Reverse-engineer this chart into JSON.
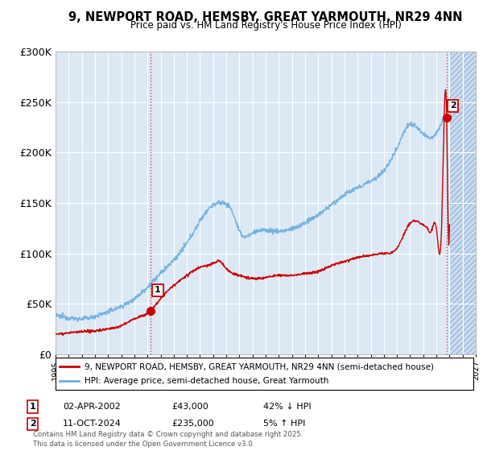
{
  "title": "9, NEWPORT ROAD, HEMSBY, GREAT YARMOUTH, NR29 4NN",
  "subtitle": "Price paid vs. HM Land Registry's House Price Index (HPI)",
  "xmin": 1995.0,
  "xmax": 2027.0,
  "ymin": 0,
  "ymax": 300000,
  "yticks": [
    0,
    50000,
    100000,
    150000,
    200000,
    250000,
    300000
  ],
  "ytick_labels": [
    "£0",
    "£50K",
    "£100K",
    "£150K",
    "£200K",
    "£250K",
    "£300K"
  ],
  "bg_color": "#dce9f5",
  "grid_color": "#ffffff",
  "hatch_start": 2025.0,
  "sale1_x": 2002.25,
  "sale1_y": 43000,
  "sale2_x": 2024.78,
  "sale2_y": 235000,
  "legend_line1": "9, NEWPORT ROAD, HEMSBY, GREAT YARMOUTH, NR29 4NN (semi-detached house)",
  "legend_line2": "HPI: Average price, semi-detached house, Great Yarmouth",
  "ann1_label": "1",
  "ann1_date": "02-APR-2002",
  "ann1_price": "£43,000",
  "ann1_hpi": "42% ↓ HPI",
  "ann2_label": "2",
  "ann2_date": "11-OCT-2024",
  "ann2_price": "£235,000",
  "ann2_hpi": "5% ↑ HPI",
  "footer": "Contains HM Land Registry data © Crown copyright and database right 2025.\nThis data is licensed under the Open Government Licence v3.0.",
  "line_red": "#cc0000",
  "line_blue": "#6aaee0"
}
